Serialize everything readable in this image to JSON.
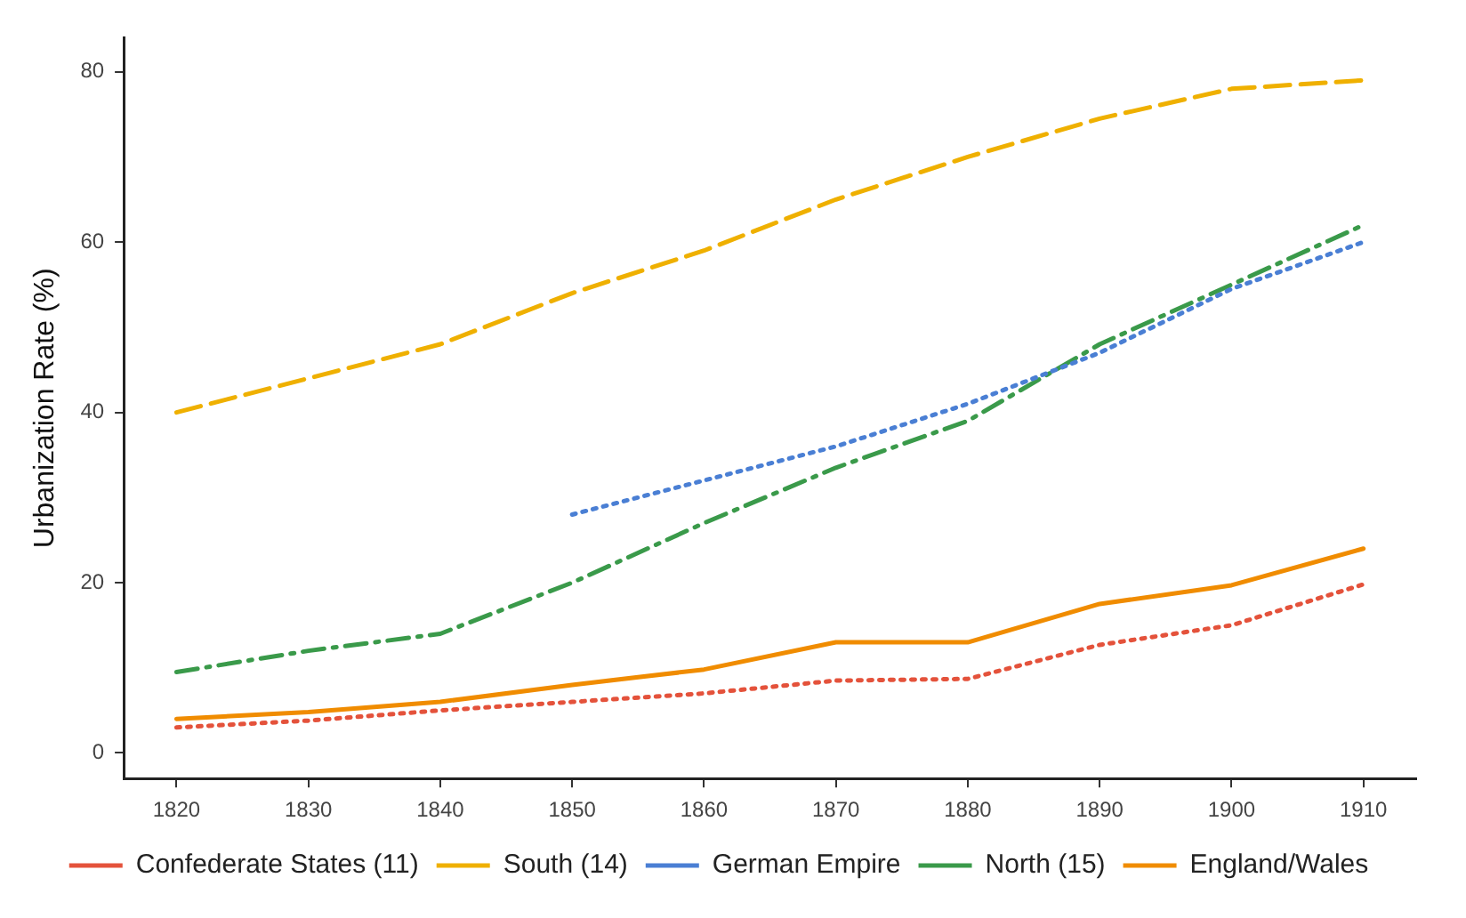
{
  "chart_data": {
    "type": "line",
    "ylabel": "Urbanization Rate (%)",
    "x": [
      1820,
      1830,
      1840,
      1850,
      1860,
      1870,
      1880,
      1890,
      1900,
      1910
    ],
    "series": [
      {
        "name": "Confederate States (11)",
        "color": "#e4523b",
        "line_style": "dotted",
        "values": [
          3,
          3.8,
          5,
          6,
          7,
          8.5,
          8.7,
          12.7,
          15,
          19.8
        ]
      },
      {
        "name": "South (14)",
        "color": "#efb000",
        "line_style": "dashed",
        "values": [
          40,
          44,
          48,
          54,
          59,
          65,
          70,
          74.5,
          78,
          79
        ]
      },
      {
        "name": "German Empire",
        "color": "#4a7fd4",
        "line_style": "dotted",
        "values": [
          null,
          null,
          null,
          28,
          32,
          36,
          41,
          47,
          54.5,
          60
        ]
      },
      {
        "name": "North (15)",
        "color": "#3a9a4a",
        "line_style": "dashdot",
        "values": [
          9.5,
          12,
          14,
          20,
          27,
          33.5,
          39,
          48,
          55,
          62
        ]
      },
      {
        "name": "England/Wales",
        "color": "#f08c00",
        "line_style": "solid",
        "values": [
          4,
          4.8,
          6,
          8,
          9.8,
          13,
          13,
          17.5,
          19.7,
          24
        ]
      }
    ],
    "xlim": [
      1816,
      1914
    ],
    "xticks": [
      1820,
      1830,
      1840,
      1850,
      1860,
      1870,
      1880,
      1890,
      1900,
      1910
    ],
    "ylim": [
      -3,
      84
    ],
    "yticks": [
      0,
      20,
      40,
      60,
      80
    ],
    "grid": false,
    "legend": "bottom",
    "marker": "none"
  }
}
